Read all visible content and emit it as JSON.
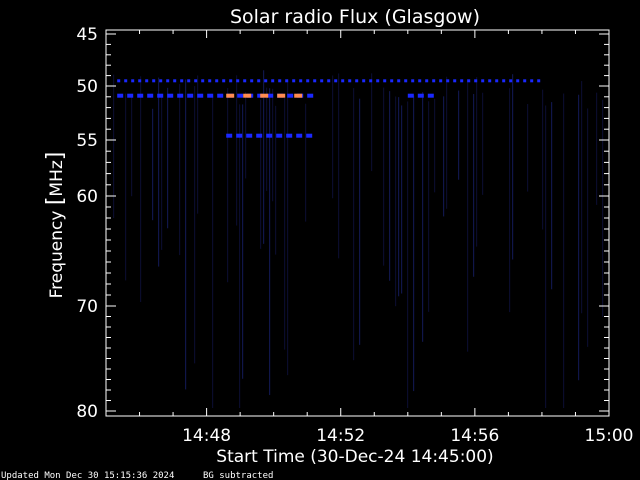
{
  "chart_data": {
    "type": "heatmap",
    "title": "Solar radio Flux (Glasgow)",
    "xlabel": "Start Time (30-Dec-24 14:45:00)",
    "ylabel_main": "Frequency ",
    "ylabel_unit": "MHz",
    "x_range_minutes": [
      "14:45",
      "15:00"
    ],
    "x_major_ticks": [
      "14:48",
      "14:52",
      "14:56",
      "15:00"
    ],
    "y_range": [
      45,
      80
    ],
    "y_major_ticks": [
      45,
      50,
      55,
      60,
      70,
      80
    ],
    "y_scale": "nonlinear (compressed toward high frequency)",
    "background": "#000000",
    "colors": {
      "low": "#0a0a2a",
      "medium": "#1a28ff",
      "high": "#ff8c50",
      "axis": "#ffffff"
    },
    "features": [
      {
        "name": "dotted band near 49.5 MHz",
        "freq": 49.5,
        "start": "14:45:20",
        "end": "14:58:00",
        "intensity": "medium"
      },
      {
        "name": "intense band near 51 MHz",
        "freq": 50.9,
        "start": "14:45:20",
        "end": "14:51:10",
        "intensity": "medium"
      },
      {
        "name": "enhanced emission near 51 MHz",
        "freq": 50.9,
        "start": "14:48:35",
        "end": "14:51:00",
        "intensity": "high"
      },
      {
        "name": "band near 54.5 MHz",
        "freq": 54.6,
        "start": "14:48:35",
        "end": "14:51:00",
        "intensity": "medium"
      },
      {
        "name": "short band near 51 MHz",
        "freq": 50.9,
        "start": "14:54:00",
        "end": "14:54:40",
        "intensity": "medium"
      }
    ]
  },
  "footer": {
    "updated": "Updated Mon Dec 30 15:15:36 2024",
    "note": "BG subtracted"
  }
}
